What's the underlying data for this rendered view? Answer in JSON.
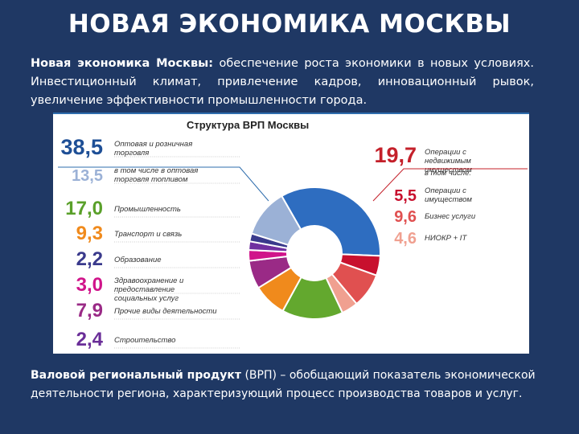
{
  "title": "НОВАЯ ЭКОНОМИКА МОСКВЫ",
  "intro": {
    "bold": "Новая экономика Москвы:",
    "text": " обеспечение роста экономики в новых условиях. Инвестиционный климат, привлечение кадров, инновационный рывок, увеличение эффективности промышленности города."
  },
  "footer": {
    "bold": "Валовой региональный продукт",
    "text": " (ВРП) – обобщающий показатель экономической деятельности региона, характеризующий процесс производства товаров и услуг."
  },
  "chart_data": {
    "type": "pie",
    "title": "Структура ВРП Москвы",
    "slices": [
      {
        "label": "Оптовая и розничная торговля",
        "value": 38.5,
        "color": "#2e6dc0",
        "side": "left",
        "value_color": "#1e4f96"
      },
      {
        "label": "Операции с недвижимым имуществом",
        "value": 19.7,
        "color": "#d4262e",
        "side": "right",
        "value_color": "#c4202a"
      },
      {
        "label": "Промышленность",
        "value": 17.0,
        "color": "#63a82e",
        "side": "left",
        "value_color": "#5aa02a"
      },
      {
        "label": "Транспорт и связь",
        "value": 9.3,
        "color": "#f08a1c",
        "side": "left",
        "value_color": "#f08a1c"
      },
      {
        "label": "Образование",
        "value": 2.2,
        "color": "#3a3a8c",
        "side": "left",
        "value_color": "#3a3a8c"
      },
      {
        "label": "Здравоохранение и предоставление социальных услуг",
        "value": 3.0,
        "color": "#d0148a",
        "side": "left",
        "value_color": "#d0148a"
      },
      {
        "label": "Прочие виды деятельности",
        "value": 7.9,
        "color": "#9a2a86",
        "side": "left",
        "value_color": "#9a2a86"
      },
      {
        "label": "Строительство",
        "value": 2.4,
        "color": "#7030a0",
        "side": "left",
        "value_color": "#6a2e98"
      }
    ],
    "sub_items": [
      {
        "parent": "Оптовая и розничная торговля",
        "label": "в том числе в оптовая торговля топливом",
        "value": 13.5,
        "color": "#9bb1d6",
        "side": "left"
      },
      {
        "parent": "Операции с недвижимым имуществом",
        "label": "в том числе:",
        "value": null,
        "side": "right"
      },
      {
        "parent": "Операции с недвижимым имуществом",
        "label": "Операции с имуществом",
        "value": 5.5,
        "color": "#c8102e",
        "side": "right"
      },
      {
        "parent": "Операции с недвижимым имуществом",
        "label": "Бизнес услуги",
        "value": 9.6,
        "color": "#e05050",
        "side": "right"
      },
      {
        "parent": "Операции с недвижимым имуществом",
        "label": "НИОКР + IT",
        "value": 4.6,
        "color": "#f0a090",
        "side": "right"
      }
    ]
  }
}
